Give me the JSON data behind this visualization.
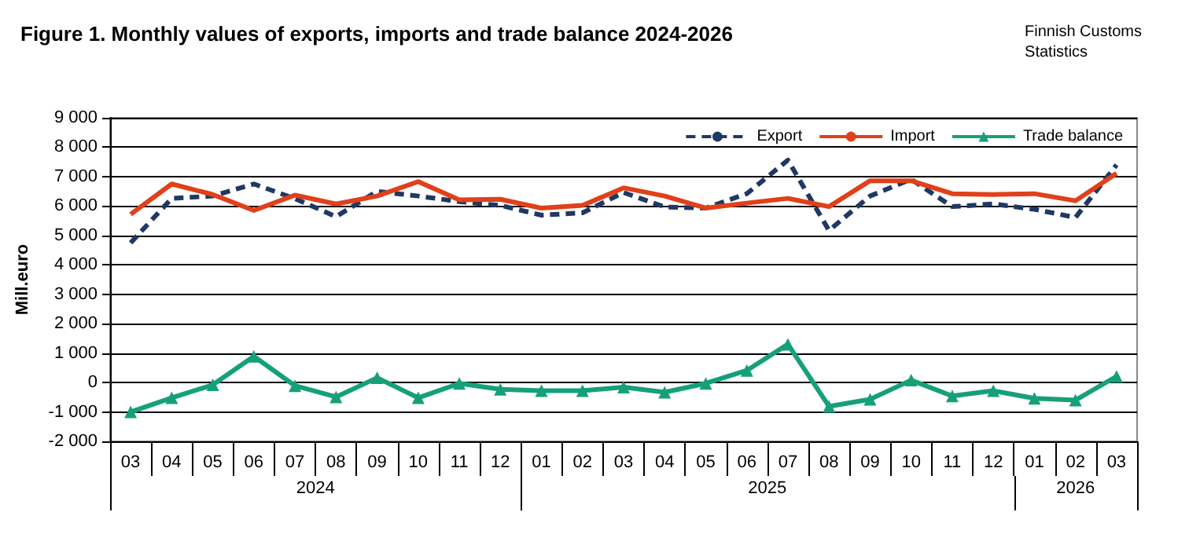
{
  "chart_data": {
    "type": "line",
    "title": "Figure 1. Monthly values of exports, imports and trade balance 2024-2026",
    "ylabel": "Mill.euro",
    "annotations": [
      "Finnish Customs\nStatistics",
      "2024",
      "2025",
      "2026"
    ],
    "categories": [
      "03",
      "04",
      "05",
      "06",
      "07",
      "08",
      "09",
      "10",
      "11",
      "12",
      "01",
      "02",
      "03",
      "04",
      "05",
      "06",
      "07",
      "08",
      "09",
      "10",
      "11",
      "12",
      "01",
      "02",
      "03"
    ],
    "series": [
      {
        "name": "Export",
        "color": "#1f3864",
        "line_style": "dashed",
        "marker": "none",
        "values": [
          4750,
          6260,
          6340,
          6750,
          6250,
          5640,
          6500,
          6340,
          6150,
          6020,
          5690,
          5770,
          6460,
          5970,
          5930,
          6420,
          7560,
          5170,
          6340,
          6910,
          5980,
          6070,
          5890,
          5610,
          7400
        ]
      },
      {
        "name": "Import",
        "color": "#e0401a",
        "line_style": "solid",
        "marker": "none",
        "values": [
          5720,
          6750,
          6390,
          5850,
          6370,
          6070,
          6340,
          6830,
          6210,
          6230,
          5930,
          6020,
          6620,
          6340,
          5930,
          6100,
          6260,
          5980,
          6860,
          6860,
          6420,
          6390,
          6420,
          6180,
          7110
        ]
      },
      {
        "name": "Trade balance",
        "color": "#16a07a",
        "line_style": "solid",
        "marker": "triangle",
        "values": [
          -1000,
          -520,
          -80,
          890,
          -110,
          -490,
          160,
          -520,
          -30,
          -230,
          -280,
          -280,
          -160,
          -330,
          -30,
          410,
          1300,
          -810,
          -570,
          80,
          -460,
          -280,
          -540,
          -600,
          210
        ]
      }
    ],
    "ylim": [
      -2000,
      9000
    ],
    "yticks": [
      -2000,
      -1000,
      0,
      1000,
      2000,
      3000,
      4000,
      5000,
      6000,
      7000,
      8000,
      9000
    ],
    "grid": "y",
    "legend": "top right"
  }
}
